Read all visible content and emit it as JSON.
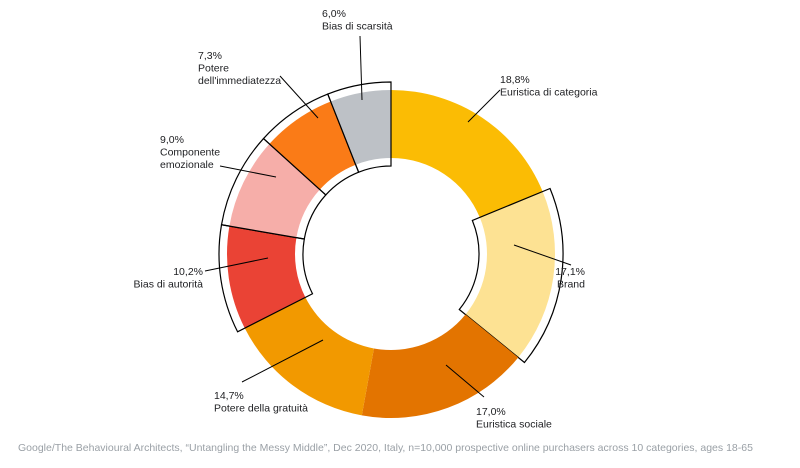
{
  "chart_data": {
    "type": "pie",
    "style": "donut",
    "unit": "%",
    "slices": [
      {
        "value_label": "18,8%",
        "name": "Euristica di categoria",
        "value": 18.8,
        "color": "#fbbc04",
        "highlighted": false
      },
      {
        "value_label": "17,1%",
        "name": "Brand",
        "value": 17.1,
        "color": "#fde293",
        "highlighted": true
      },
      {
        "value_label": "17,0%",
        "name": "Euristica sociale",
        "value": 17.0,
        "color": "#e37400",
        "highlighted": false
      },
      {
        "value_label": "14,7%",
        "name": "Potere della gratuità",
        "value": 14.7,
        "color": "#f29900",
        "highlighted": false
      },
      {
        "value_label": "10,2%",
        "name": "Bias di autorità",
        "value": 10.2,
        "color": "#ea4335",
        "highlighted": true
      },
      {
        "value_label": "9,0%",
        "name": "Componente emozionale",
        "value": 9.0,
        "color": "#f6aea9",
        "highlighted": true
      },
      {
        "value_label": "7,3%",
        "name": "Potere dell'immediatezza",
        "value": 7.3,
        "color": "#fa7b17",
        "highlighted": true
      },
      {
        "value_label": "6,0%",
        "name": "Bias di scarsità",
        "value": 6.0,
        "color": "#bdc1c6",
        "highlighted": true
      }
    ]
  },
  "footnote": "Google/The Behavioural Architects, “Untangling the Messy Middle”, Dec 2020,  Italy, n=10,000 prospective online purchasers across 10 categories, ages 18-65"
}
